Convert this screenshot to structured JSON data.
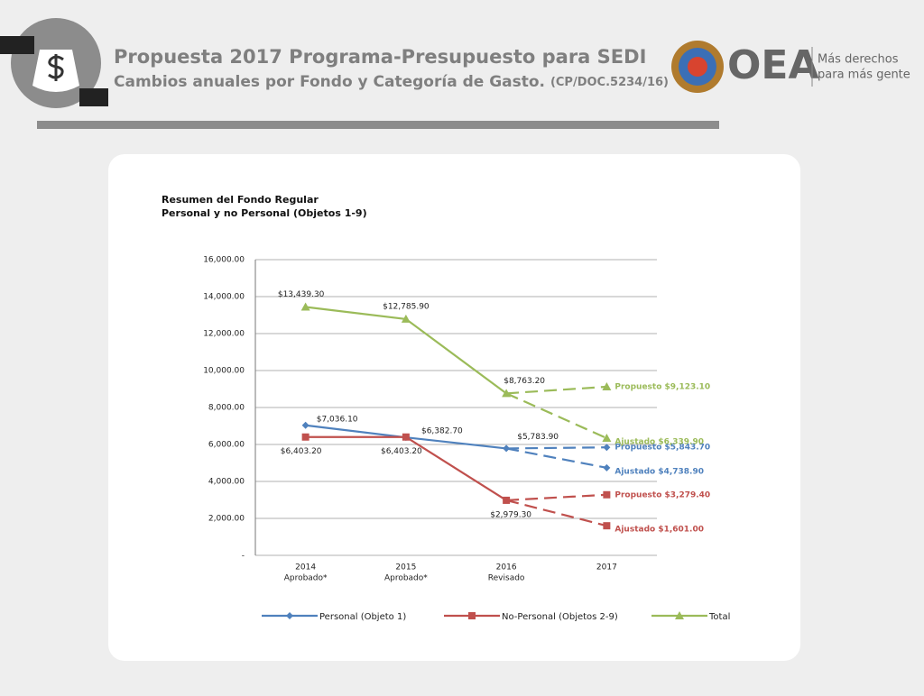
{
  "header": {
    "title": "Propuesta 2017 Programa-Presupuesto para SEDI",
    "subtitle": "Cambios anuales por Fondo y Categoría de Gasto.",
    "doc_ref": "(CP/DOC.5234/16)",
    "logo": "OEA",
    "slogan_1": "Más derechos",
    "slogan_2": "para más gente"
  },
  "chart_data": {
    "type": "line",
    "title": "Resumen del Fondo Regular",
    "subtitle": "Personal y no Personal (Objetos 1-9)",
    "categories": [
      "2014",
      "2015",
      "2016",
      "2017"
    ],
    "category_sublabels": [
      "Aprobado*",
      "Aprobado*",
      "Revisado",
      null
    ],
    "ylim": [
      0,
      16000
    ],
    "yticks": [
      {
        "value": 0,
        "label": "-"
      },
      {
        "value": 2000,
        "label": "2,000.00"
      },
      {
        "value": 4000,
        "label": "4,000.00"
      },
      {
        "value": 6000,
        "label": "6,000.00"
      },
      {
        "value": 8000,
        "label": "8,000.00"
      },
      {
        "value": 10000,
        "label": "10,000.00"
      },
      {
        "value": 12000,
        "label": "12,000.00"
      },
      {
        "value": 14000,
        "label": "14,000.00"
      },
      {
        "value": 16000,
        "label": "16,000.00"
      }
    ],
    "grid": true,
    "series": [
      {
        "name": "Personal (Objeto 1)",
        "color": "#4f81bd",
        "marker": "diamond",
        "values": [
          7036.1,
          6382.7,
          5783.9,
          null
        ],
        "value_labels": [
          "$7,036.10",
          "$6,382.70",
          "$5,783.90",
          null
        ],
        "projections": [
          {
            "label": "Propuesto $5,843.70",
            "value": 5843.7
          },
          {
            "label": "Ajustado $4,738.90",
            "value": 4738.9
          }
        ]
      },
      {
        "name": "No-Personal (Objetos 2-9)",
        "color": "#c0504d",
        "marker": "square",
        "values": [
          6403.2,
          6403.2,
          2979.3,
          null
        ],
        "value_labels": [
          "$6,403.20",
          "$6,403.20",
          "$2,979.30",
          null
        ],
        "projections": [
          {
            "label": "Propuesto $3,279.40",
            "value": 3279.4
          },
          {
            "label": "Ajustado $1,601.00",
            "value": 1601.0
          }
        ]
      },
      {
        "name": "Total",
        "color": "#9bbb59",
        "marker": "triangle",
        "values": [
          13439.3,
          12785.9,
          8763.2,
          null
        ],
        "value_labels": [
          "$13,439.30",
          "$12,785.90",
          "$8,763.20",
          null
        ],
        "projections": [
          {
            "label": "Propuesto $9,123.10",
            "value": 9123.1
          },
          {
            "label": "Ajustado $6,339.90",
            "value": 6339.9
          }
        ]
      }
    ]
  }
}
